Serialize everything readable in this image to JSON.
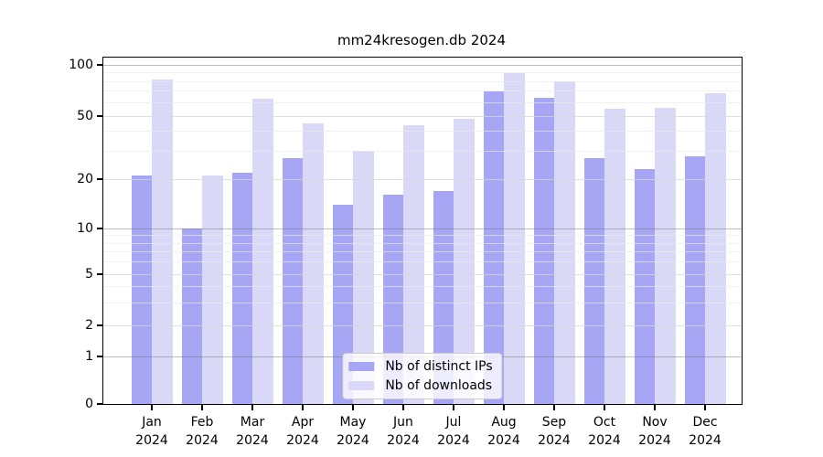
{
  "title": "mm24kresogen.db 2024",
  "chart_data": {
    "type": "bar",
    "categories": [
      "Jan",
      "Feb",
      "Mar",
      "Apr",
      "May",
      "Jun",
      "Jul",
      "Aug",
      "Sep",
      "Oct",
      "Nov",
      "Dec"
    ],
    "year_label": "2024",
    "series": [
      {
        "name": "Nb of distinct IPs",
        "color": "#a6a6f4",
        "values": [
          21,
          10,
          22,
          27,
          14,
          16,
          17,
          70,
          64,
          27,
          23,
          28
        ]
      },
      {
        "name": "Nb of downloads",
        "color": "#d9d9f7",
        "values": [
          82,
          21,
          63,
          45,
          30,
          44,
          48,
          90,
          80,
          55,
          56,
          68
        ]
      }
    ],
    "y_axis": {
      "scale": "log",
      "ticks": [
        0,
        1,
        2,
        5,
        10,
        20,
        50,
        100
      ],
      "minor_ticks": [
        3,
        4,
        6,
        7,
        8,
        9,
        30,
        40,
        60,
        70,
        80,
        90
      ],
      "ylim": [
        0,
        110
      ]
    },
    "legend_position": "lower center",
    "grid": true
  },
  "colors": {
    "bar_dark": "#a6a6f4",
    "bar_light": "#d9d9f7",
    "frame": "#000000",
    "legend_border": "#cccccc"
  }
}
